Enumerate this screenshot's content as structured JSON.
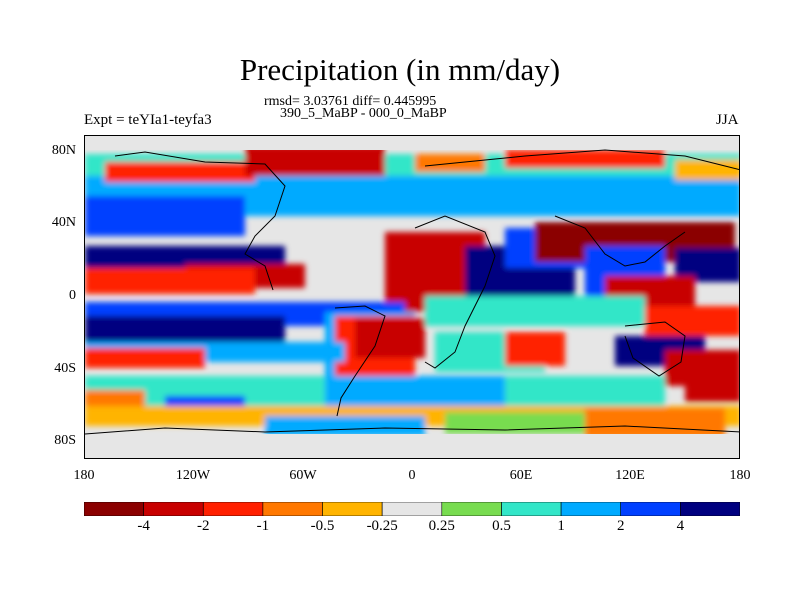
{
  "title": "Precipitation (in mm/day)",
  "stats_line": "rmsd= 3.03761 diff= 0.445995",
  "periods_line": "390_5_MaBP - 000_0_MaBP",
  "experiment": "Expt = teYIa1-teyfa3",
  "season": "JJA",
  "lat_ticks": [
    "80N",
    "40N",
    "0",
    "40S",
    "80S"
  ],
  "lon_ticks": [
    "180",
    "120W",
    "60W",
    "0",
    "60E",
    "120E",
    "180"
  ],
  "colorbar": {
    "labels": [
      "-4",
      "-2",
      "-1",
      "-0.5",
      "-0.25",
      "0.25",
      "0.5",
      "1",
      "2",
      "4"
    ],
    "colors": [
      "#8b0000",
      "#c80000",
      "#ff2000",
      "#ff7800",
      "#ffb400",
      "#e6e6e6",
      "#78dc50",
      "#32e6c8",
      "#00aaff",
      "#0040ff",
      "#000080"
    ]
  }
}
